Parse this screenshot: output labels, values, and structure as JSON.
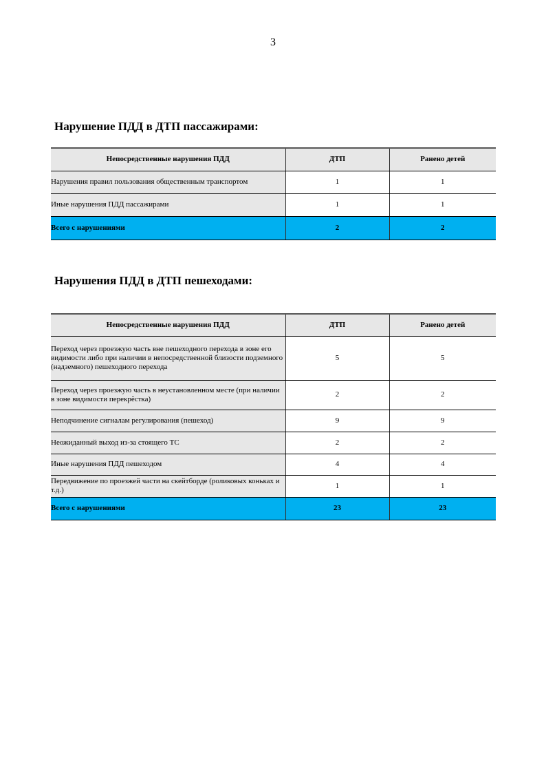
{
  "page_number": "3",
  "passengers": {
    "heading": "Нарушение ПДД в ДТП пассажирами:",
    "columns": [
      "Непосредственные нарушения ПДД",
      "ДТП",
      "Ранено детей"
    ],
    "rows": [
      {
        "label": "Нарушения правил пользования общественным транспортом",
        "dtp": "1",
        "injured": "1"
      },
      {
        "label": "Иные нарушения ПДД пассажирами",
        "dtp": "1",
        "injured": "1"
      }
    ],
    "total": {
      "label": "Всего с нарушениями",
      "dtp": "2",
      "injured": "2"
    }
  },
  "pedestrians": {
    "heading": "Нарушения ПДД в ДТП пешеходами:",
    "columns": [
      "Непосредственные нарушения ПДД",
      "ДТП",
      "Ранено детей"
    ],
    "rows": [
      {
        "label": "Переход через проезжую часть вне пешеходного перехода в зоне его видимости либо при наличии в непосредственной близости подземного (надземного) пешеходного перехода",
        "dtp": "5",
        "injured": "5"
      },
      {
        "label": "Переход через проезжую часть в неустановленном месте (при наличии в зоне видимости перекрёстка)",
        "dtp": "2",
        "injured": "2"
      },
      {
        "label": "Неподчинение сигналам регулирования (пешеход)",
        "dtp": "9",
        "injured": "9"
      },
      {
        "label": "Неожиданный выход из-за стоящего ТС",
        "dtp": "2",
        "injured": "2"
      },
      {
        "label": "Иные нарушения ПДД пешеходом",
        "dtp": "4",
        "injured": "4"
      },
      {
        "label": "Передвижение по проезжей части на скейтборде (роликовых коньках и т.д.)",
        "dtp": "1",
        "injured": "1"
      }
    ],
    "total": {
      "label": "Всего с нарушениями",
      "dtp": "23",
      "injured": "23"
    }
  },
  "colors": {
    "header_bg": "#e7e7e7",
    "total_bg": "#00b0f0"
  }
}
